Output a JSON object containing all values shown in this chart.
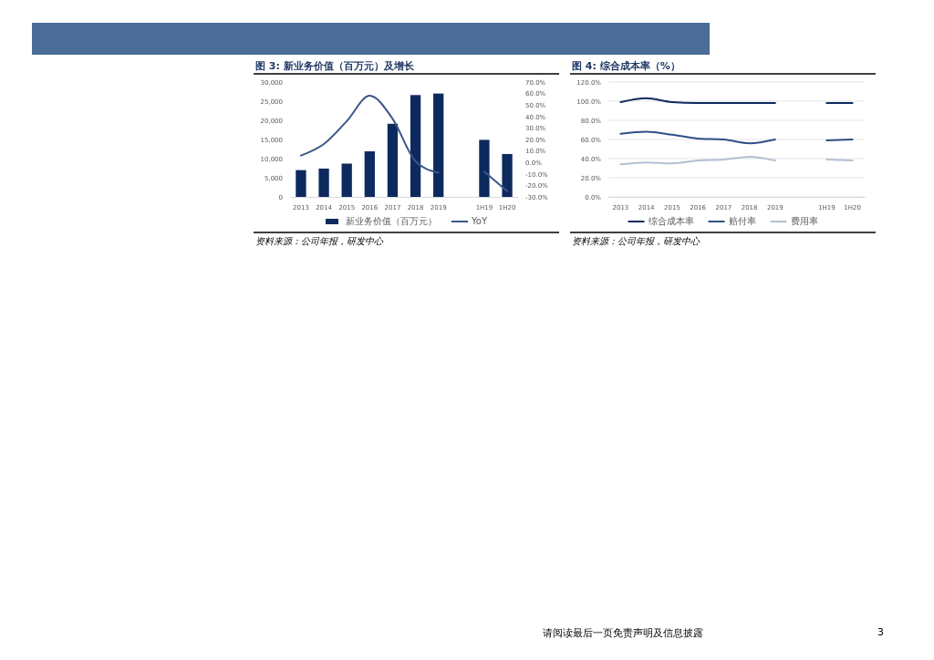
{
  "chart_data": [
    {
      "type": "bar",
      "title": "图 3:  新业务价值（百万元）及增长",
      "categories": [
        "2013",
        "2014",
        "2015",
        "2016",
        "2017",
        "2018",
        "2019",
        null,
        "1H19",
        "1H20"
      ],
      "series": [
        {
          "name": "新业务价值（百万元）",
          "color": "#0d2a5e",
          "values": [
            7000,
            7400,
            8700,
            11900,
            19100,
            26600,
            27000,
            null,
            14900,
            11200
          ]
        },
        {
          "name": "YoY",
          "type": "line",
          "axis": "y2",
          "color": "#3b5688",
          "values": [
            6,
            16,
            36,
            58,
            38,
            1,
            -9,
            null,
            -8,
            -25
          ]
        }
      ],
      "ylim": [
        0,
        30000
      ],
      "yticks": [
        0,
        {
          "value": 5000,
          "label": "5,000"
        },
        {
          "value": 10000,
          "label": "10,000"
        },
        {
          "value": 15000,
          "label": "15,000"
        },
        {
          "value": 20000,
          "label": "20,000"
        },
        {
          "value": 25000,
          "label": "25,000"
        },
        {
          "value": 30000,
          "label": "30,000"
        }
      ],
      "y2lim": [
        -30,
        70
      ],
      "y2ticks": [
        {
          "value": -30,
          "label": "-30.0%"
        },
        {
          "value": -20,
          "label": "-20.0%"
        },
        {
          "value": -10,
          "label": "-10.0%"
        },
        {
          "value": 0,
          "label": "0.0%"
        },
        {
          "value": 10,
          "label": "10.0%"
        },
        {
          "value": 20,
          "label": "20.0%"
        },
        {
          "value": 30,
          "label": "30.0%"
        },
        {
          "value": 40,
          "label": "40.0%"
        },
        {
          "value": 50,
          "label": "50.0%"
        },
        {
          "value": 60,
          "label": "60.0%"
        },
        {
          "value": 70,
          "label": "70.0%"
        }
      ],
      "grid": false,
      "legend": "bottom",
      "annotations": [
        "资料来源：公司年报，研发中心"
      ]
    },
    {
      "type": "line",
      "title": "图 4:  综合成本率（%）",
      "categories": [
        "2013",
        "2014",
        "2015",
        "2016",
        "2017",
        "2018",
        "2019",
        null,
        "1H19",
        "1H20"
      ],
      "series": [
        {
          "name": "综合成本率",
          "color": "#0d2a5e",
          "values": [
            99,
            103,
            99,
            98,
            98,
            98,
            98,
            null,
            98,
            98
          ]
        },
        {
          "name": "赔付率",
          "color": "#2f4f86",
          "values": [
            66,
            68,
            65,
            61,
            60,
            56,
            60,
            null,
            59,
            60
          ]
        },
        {
          "name": "费用率",
          "color": "#b4bfd3",
          "values": [
            34,
            36,
            35,
            38,
            39,
            42,
            38,
            null,
            39,
            38
          ]
        }
      ],
      "ylim": [
        0,
        120
      ],
      "yticks": [
        {
          "value": 0,
          "label": "0.0%"
        },
        {
          "value": 20,
          "label": "20.0%"
        },
        {
          "value": 40,
          "label": "40.0%"
        },
        {
          "value": 60,
          "label": "60.0%"
        },
        {
          "value": 80,
          "label": "80.0%"
        },
        {
          "value": 100,
          "label": "100.0%"
        },
        {
          "value": 120,
          "label": "120.0%"
        }
      ],
      "grid": "y",
      "legend": "bottom",
      "annotations": [
        "资料来源：公司年报，研发中心",
        "请阅读最后一页免责声明及信息披露",
        "3"
      ]
    }
  ]
}
